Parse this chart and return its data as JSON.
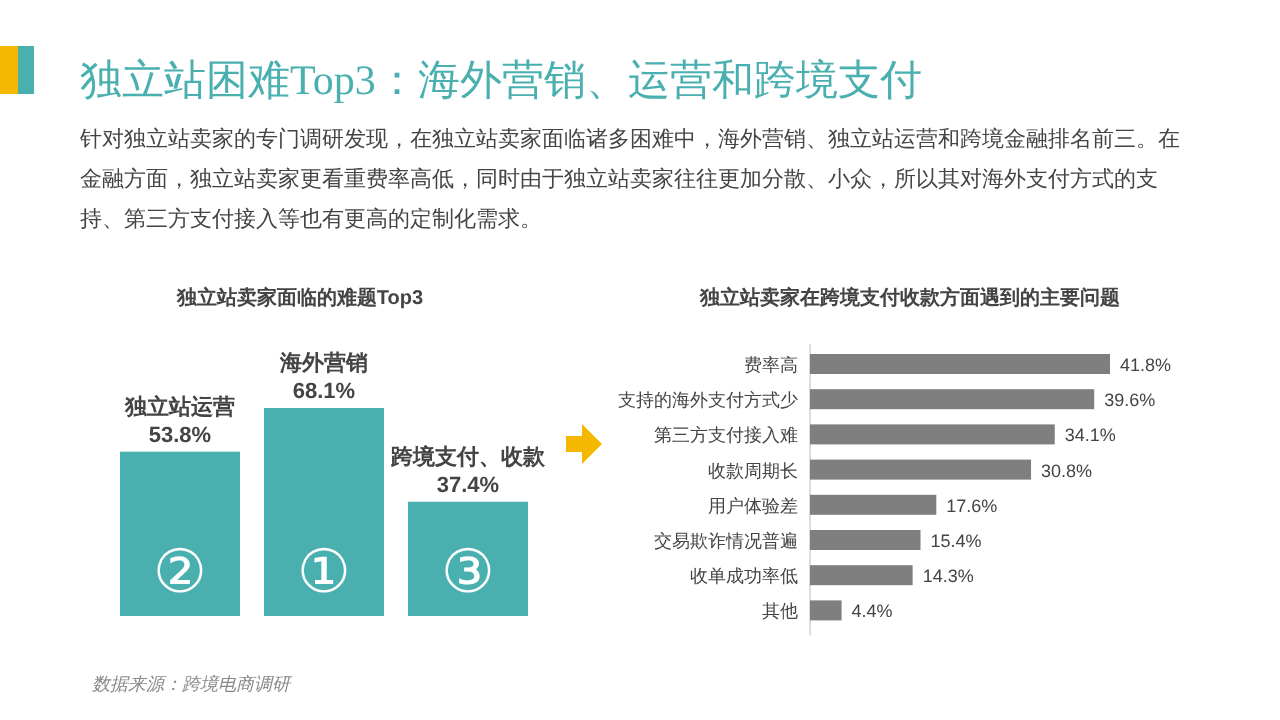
{
  "chart_data": [
    {
      "type": "other",
      "title": "独立站困难Top3：海外营销、运营和跨境支付",
      "subtitle": "针对独立站卖家的专门调研发现，在独立站卖家面临诸多困难中，海外营销、独立站运营和跨境金融排名前三。在金融方面，独立站卖家更看重费率高低，同时由于独立站卖家往往更加分散、小众，所以其对海外支付方式的支持、第三方支付接入等也有更高的定制化需求。"
    },
    {
      "type": "bar",
      "title": "独立站卖家面临的难题Top3",
      "categories": [
        "独立站运营",
        "海外营销",
        "跨境支付、收款"
      ],
      "values": [
        53.8,
        68.1,
        37.4
      ],
      "color": "#4aafaf",
      "value_labels": [
        "53.8%",
        "68.1%",
        "37.4%"
      ],
      "annotations": [
        "②",
        "①",
        "③",
        "数据来源：跨境电商调研"
      ]
    },
    {
      "type": "bar",
      "orientation": "horizontal",
      "title": "独立站卖家在跨境支付收款方面遇到的主要问题",
      "categories": [
        "费率高",
        "支持的海外支付方式少",
        "第三方支付接入难",
        "收款周期长",
        "用户体验差",
        "交易欺诈情况普遍",
        "收单成功率低",
        "其他"
      ],
      "values": [
        41.8,
        39.6,
        34.1,
        30.8,
        17.6,
        15.4,
        14.3,
        4.4
      ],
      "color": "#7f7f7f",
      "value_labels": [
        "41.8%",
        "39.6%",
        "34.1%",
        "30.8%",
        "17.6%",
        "15.4%",
        "14.3%",
        "4.4%"
      ]
    }
  ]
}
